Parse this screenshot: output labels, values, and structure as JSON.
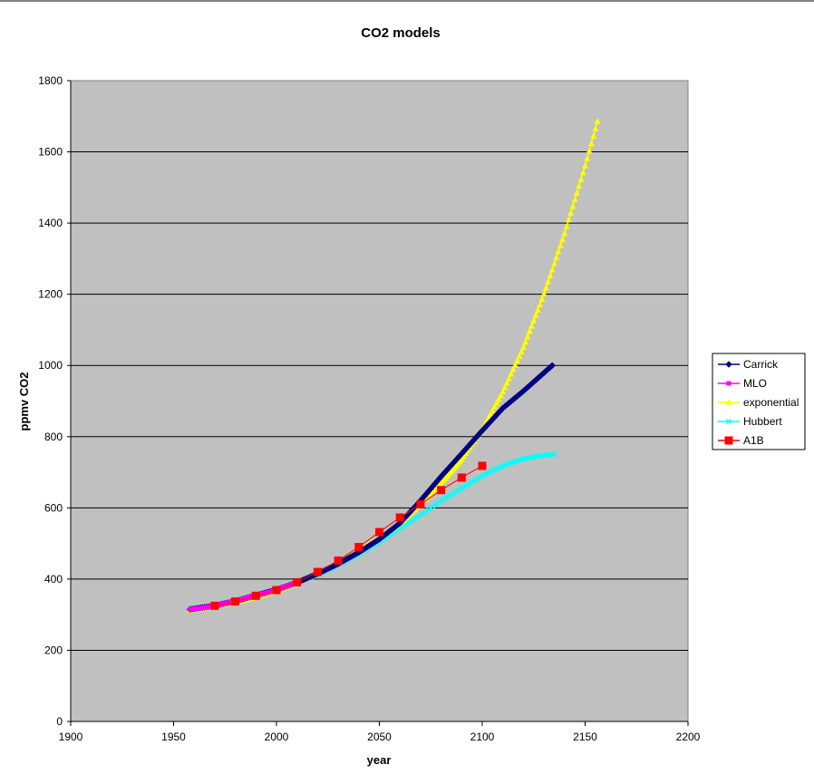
{
  "chart_data": {
    "type": "line",
    "title": "CO2 models",
    "xlabel": "year",
    "ylabel": "ppmv CO2",
    "xlim": [
      1900,
      2200
    ],
    "ylim": [
      0,
      1800
    ],
    "x_ticks": [
      1900,
      1950,
      2000,
      2050,
      2100,
      2150,
      2200
    ],
    "y_ticks": [
      0,
      200,
      400,
      600,
      800,
      1000,
      1200,
      1400,
      1600,
      1800
    ],
    "grid": "horizontal",
    "plot_background": "#c0c0c0",
    "legend_position": "right",
    "series": [
      {
        "name": "Carrick",
        "color": "#000080",
        "marker": "diamond",
        "x": [
          1958,
          1970,
          1980,
          1990,
          2000,
          2010,
          2020,
          2030,
          2040,
          2050,
          2060,
          2070,
          2080,
          2090,
          2100,
          2110,
          2120,
          2134
        ],
        "y": [
          315,
          325,
          338,
          354,
          370,
          390,
          415,
          443,
          475,
          512,
          557,
          620,
          688,
          752,
          817,
          880,
          928,
          1000
        ]
      },
      {
        "name": "MLO",
        "color": "#ff00ff",
        "marker": "square",
        "x": [
          1958,
          1965,
          1970,
          1975,
          1980,
          1985,
          1990,
          1995,
          2000,
          2005,
          2010
        ],
        "y": [
          315,
          320,
          325,
          331,
          339,
          346,
          354,
          361,
          369,
          380,
          390
        ]
      },
      {
        "name": "exponential",
        "color": "#ffff00",
        "marker": "triangle",
        "x": [
          1958,
          1970,
          1980,
          1990,
          2000,
          2010,
          2020,
          2030,
          2040,
          2050,
          2060,
          2070,
          2080,
          2090,
          2100,
          2110,
          2120,
          2130,
          2140,
          2150,
          2156
        ],
        "y": [
          312,
          322,
          334,
          348,
          365,
          388,
          415,
          445,
          480,
          515,
          555,
          610,
          668,
          735,
          820,
          925,
          1050,
          1200,
          1370,
          1560,
          1685
        ]
      },
      {
        "name": "Hubbert",
        "color": "#00ffff",
        "marker": "x",
        "x": [
          1958,
          1970,
          1980,
          1990,
          2000,
          2010,
          2020,
          2030,
          2040,
          2050,
          2060,
          2070,
          2080,
          2090,
          2100,
          2110,
          2120,
          2130,
          2135
        ],
        "y": [
          312,
          322,
          334,
          348,
          365,
          388,
          413,
          440,
          470,
          505,
          542,
          580,
          620,
          655,
          690,
          718,
          738,
          748,
          750
        ]
      },
      {
        "name": "A1B",
        "color": "#ff0000",
        "marker": "big-square",
        "x": [
          1970,
          1980,
          1990,
          2000,
          2010,
          2020,
          2030,
          2040,
          2050,
          2060,
          2070,
          2080,
          2090,
          2100
        ],
        "y": [
          325,
          337,
          353,
          369,
          391,
          420,
          452,
          490,
          532,
          573,
          610,
          650,
          685,
          718
        ]
      }
    ]
  }
}
